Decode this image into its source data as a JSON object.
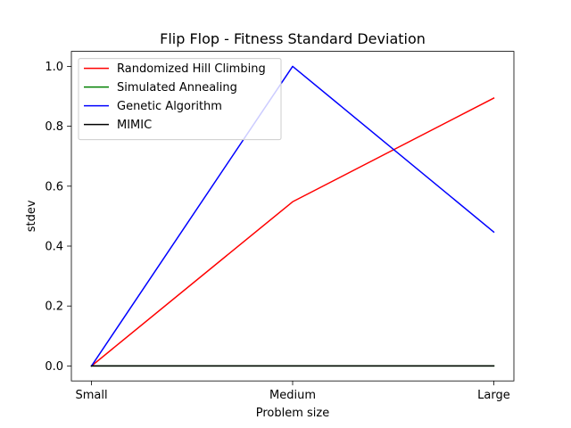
{
  "chart_data": {
    "type": "line",
    "title": "Flip Flop - Fitness Standard Deviation",
    "xlabel": "Problem size",
    "ylabel": "stdev",
    "categories": [
      "Small",
      "Medium",
      "Large"
    ],
    "ylim": [
      -0.05,
      1.05
    ],
    "yticks": [
      0.0,
      0.2,
      0.4,
      0.6,
      0.8,
      1.0
    ],
    "ytick_labels": [
      "0.0",
      "0.2",
      "0.4",
      "0.6",
      "0.8",
      "1.0"
    ],
    "grid": false,
    "legend_position": "top-left",
    "series": [
      {
        "name": "Randomized Hill Climbing",
        "color": "#ff0000",
        "values": [
          0.0,
          0.548,
          0.894
        ]
      },
      {
        "name": "Simulated Annealing",
        "color": "#008000",
        "values": [
          0.0,
          0.0,
          0.0
        ]
      },
      {
        "name": "Genetic Algorithm",
        "color": "#0000ff",
        "values": [
          0.0,
          1.0,
          0.447
        ]
      },
      {
        "name": "MIMIC",
        "color": "#000000",
        "values": [
          0.0,
          0.0,
          0.0
        ]
      }
    ]
  }
}
